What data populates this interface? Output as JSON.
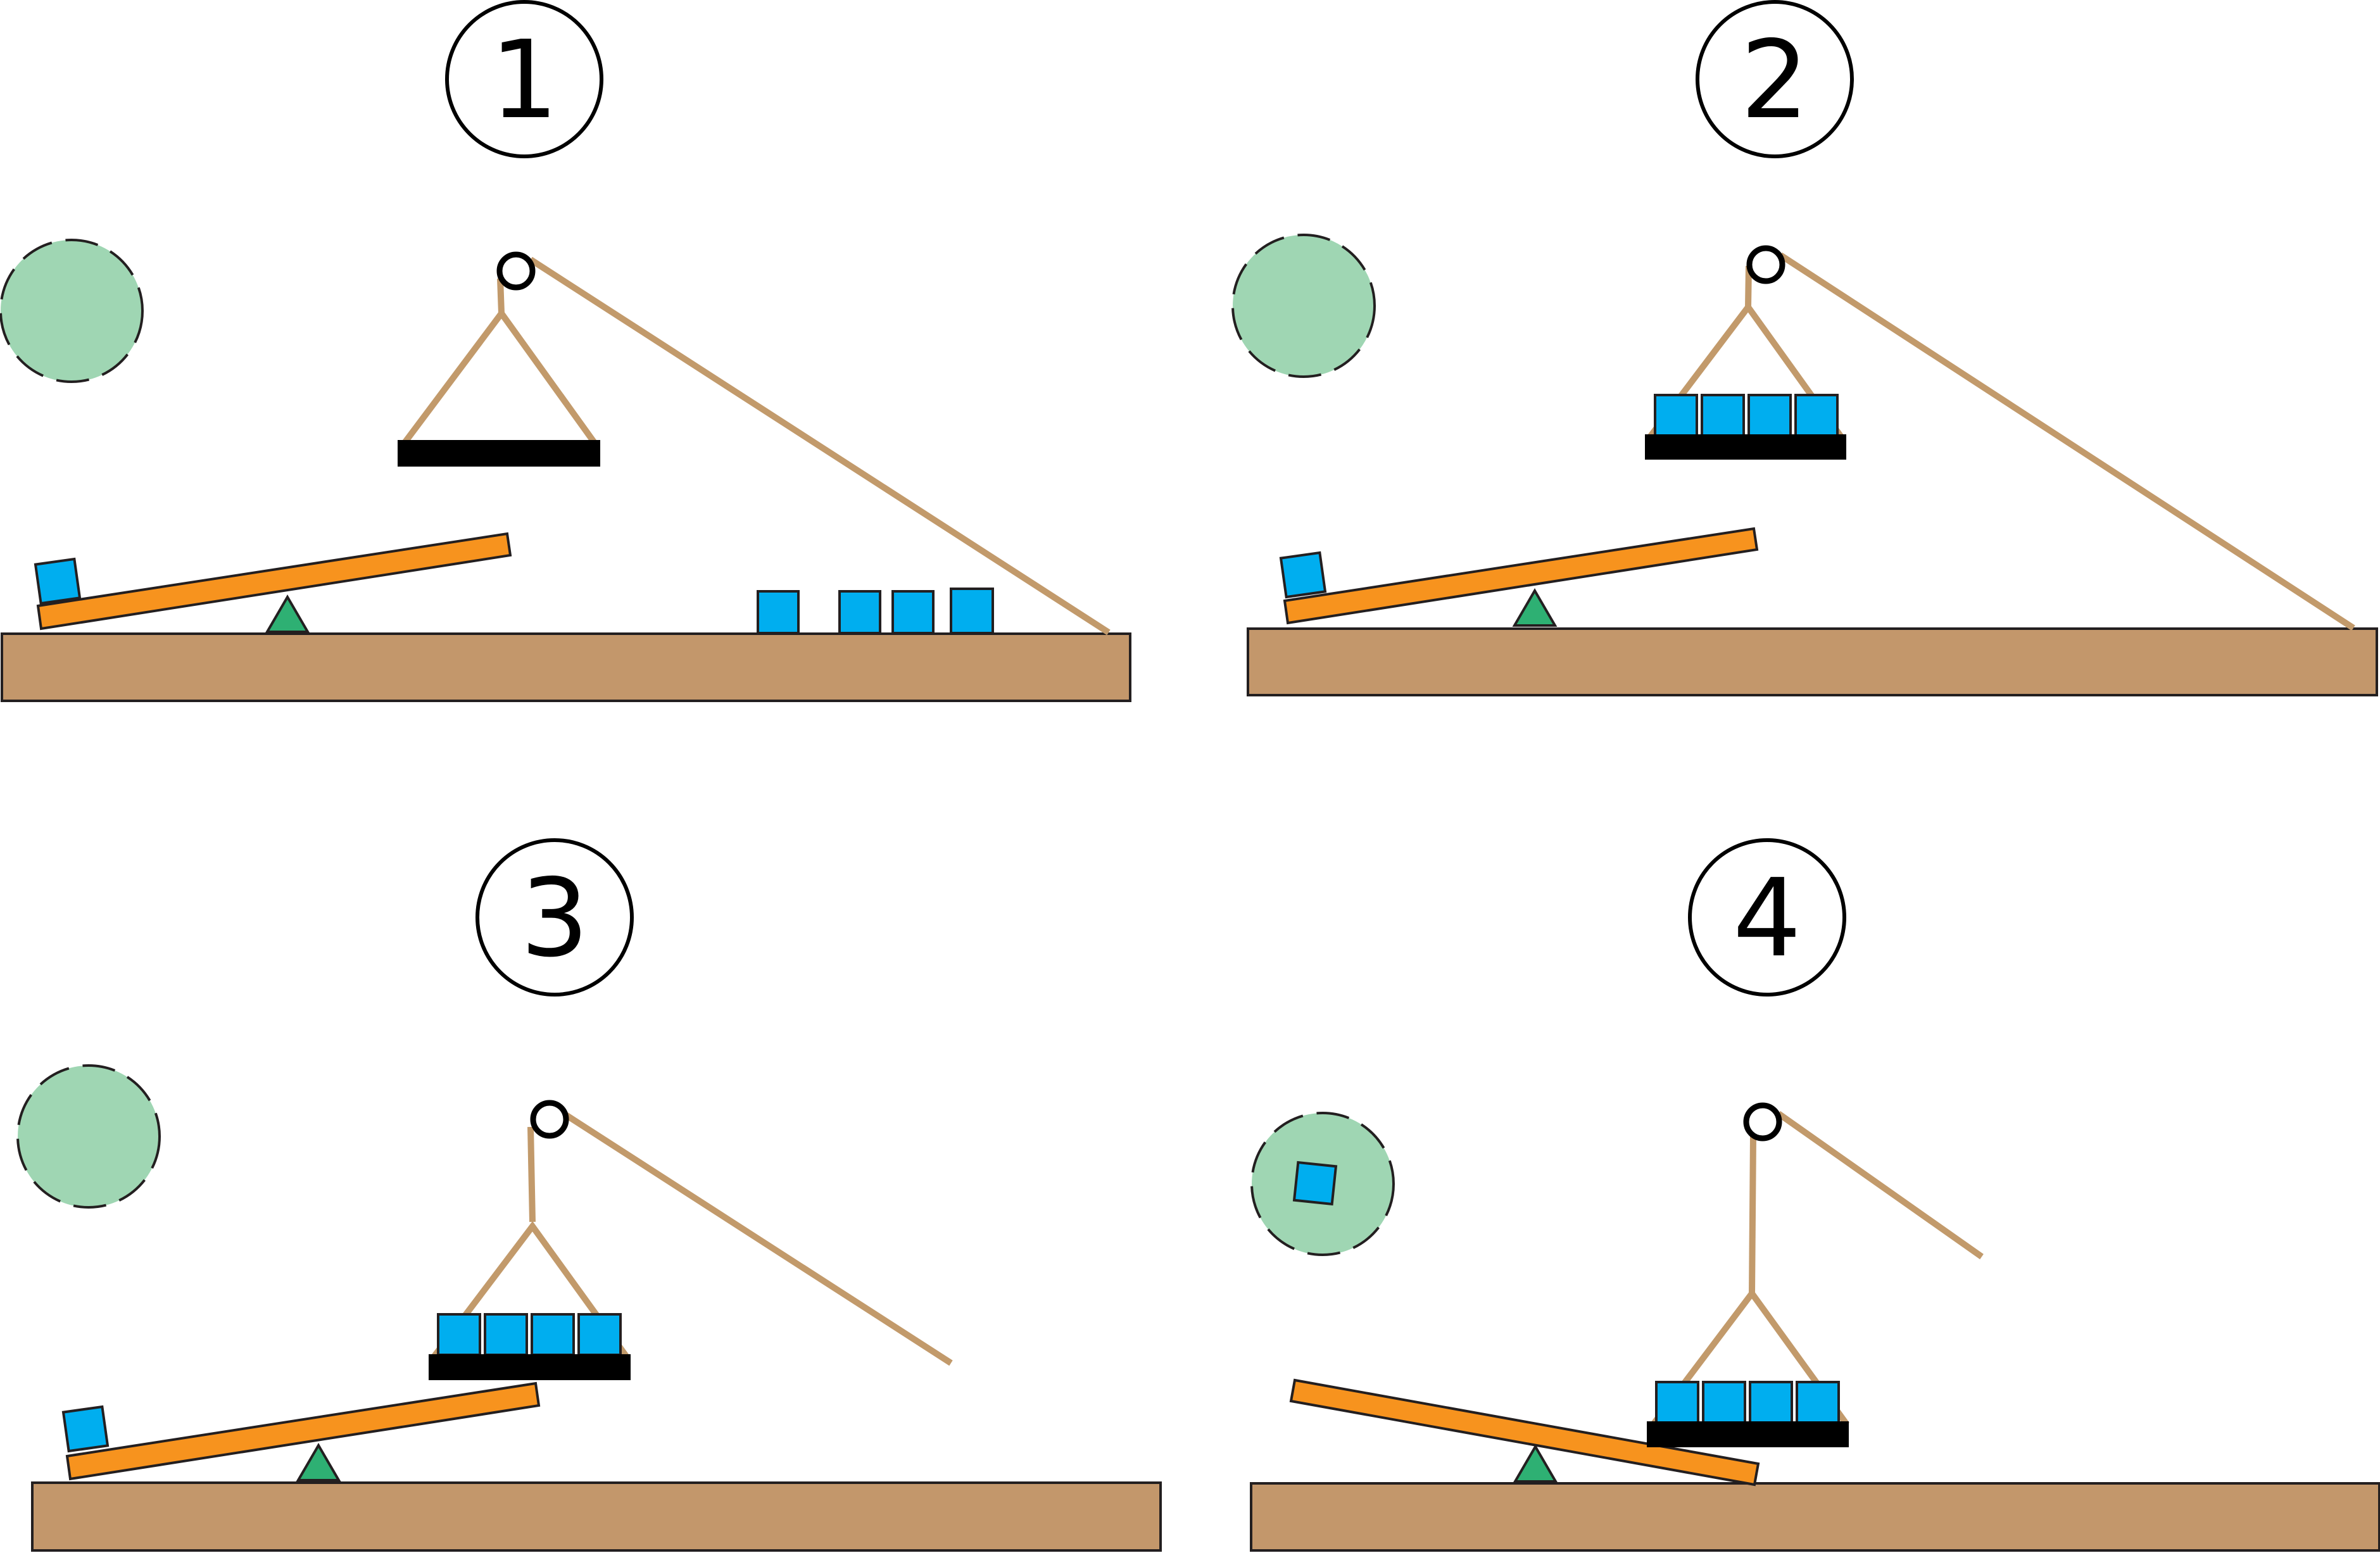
{
  "panels": [
    {
      "number": "1"
    },
    {
      "number": "2"
    },
    {
      "number": "3"
    },
    {
      "number": "4"
    }
  ],
  "colors": {
    "ground": "#c3976b",
    "plank": "#f7931e",
    "fulcrum": "#2eb073",
    "block": "#00aeef",
    "goal_zone": "#9fd6b3",
    "rope": "#c29a6b",
    "platform": "#000000"
  }
}
